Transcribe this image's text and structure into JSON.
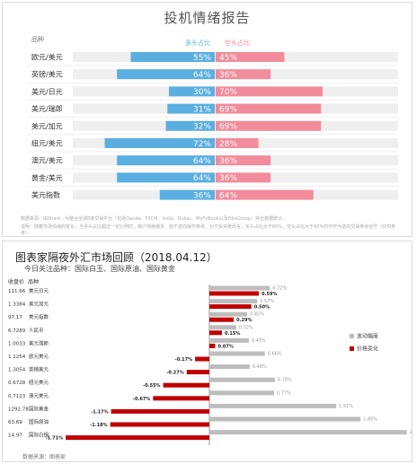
{
  "sentiment": {
    "title": "投机情绪报告",
    "col_pair": "品种",
    "legend_long": "多头占比",
    "legend_short": "空头占比",
    "colors": {
      "long": "#5aaee0",
      "short": "#f28b9b",
      "track": "#efefef"
    },
    "footnote1": "数据来源：由Shark - fx整合全球8家交易平台（包括Oanda、FXCM、Insta、Dukas、MyFxBook以及FiboGroup）持仓数据统计。",
    "footnote2": "说明：随着市场情绪的变化，当多头占比超过一定比例时，散户情绪偏多，趋于逆向操作参考。对于投资者而言，多头占比大于60%，空头占比大于60%时可作为逆向交易参考信号（仅供参考）。",
    "chart_data": {
      "type": "bar",
      "stacked": true,
      "categories": [
        "欧元/美元",
        "英镑/美元",
        "美元/日元",
        "美元/瑞郎",
        "美元/加元",
        "纽元/美元",
        "澳元/美元",
        "黄金/美元",
        "美元指数"
      ],
      "series": [
        {
          "name": "多头占比",
          "values": [
            55,
            64,
            30,
            31,
            32,
            72,
            64,
            64,
            36
          ]
        },
        {
          "name": "空头占比",
          "values": [
            45,
            36,
            70,
            69,
            69,
            28,
            36,
            36,
            64
          ]
        }
      ],
      "unit": "%"
    }
  },
  "review": {
    "title": "图表家隔夜外汇市场回顾（2018.04.12）",
    "subtitle": "今日关注品种：国际白玉、国际原油、国际黄金",
    "col_price": "收盘价",
    "col_name": "品种",
    "source": "数据来源：图表家",
    "legend_range": "波动幅度",
    "legend_change": "价格变化",
    "colors": {
      "range": "#bdbdbd",
      "change": "#c00000"
    },
    "chart_data": {
      "type": "bar",
      "categories": [
        "美元日元",
        "美元加元",
        "美元指数",
        "人民币",
        "美元瑞郎",
        "欧元美元",
        "英镑美元",
        "纽元美元",
        "澳元美元",
        "国际黄金",
        "国际原油",
        "国际白银"
      ],
      "closing_prices": [
        "111.66",
        "1.3384",
        "97.17",
        "6.7289",
        "1.0033",
        "1.1254",
        "1.3054",
        "0.6728",
        "0.7123",
        "1292.78",
        "63.69",
        "14.97"
      ],
      "series": [
        {
          "name": "波动幅度",
          "values": [
            0.72,
            0.57,
            0.45,
            0.32,
            0.47,
            0.66,
            0.48,
            0.78,
            0.77,
            1.51,
            1.8,
            2.35
          ]
        },
        {
          "name": "价格变化",
          "values": [
            0.59,
            0.5,
            0.29,
            0.15,
            0.07,
            -0.17,
            -0.27,
            -0.55,
            -0.67,
            -1.17,
            -1.18,
            -1.71
          ]
        }
      ],
      "range_labels": [
        "0.72%",
        "0.57%",
        "0.45%",
        "0.32%",
        "0.47%",
        "0.66%",
        "0.48%",
        "0.78%",
        "0.77%",
        "1.51%",
        "1.80%",
        "2.35%"
      ],
      "change_labels": [
        "0.59%",
        "0.50%",
        "0.29%",
        "0.15%",
        "0.07%",
        "-0.17%",
        "-0.27%",
        "-0.55%",
        "-0.67%",
        "-1.17%",
        "-1.18%",
        "-1.71%"
      ],
      "legend_position": "right"
    }
  }
}
